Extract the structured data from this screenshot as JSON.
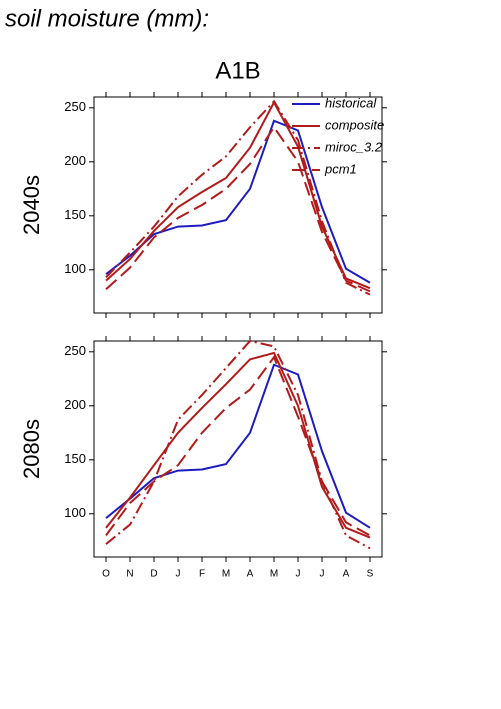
{
  "heading": "soil moisture (mm):",
  "chart_data": [
    {
      "type": "line",
      "title": "A1B",
      "ylabel": "2040s",
      "legend": "upper right",
      "ylim": [
        60,
        260
      ],
      "yticks": [
        100,
        150,
        200,
        250
      ],
      "series": [
        {
          "name": "historical",
          "color": "#1c1cc0",
          "dash": "solid",
          "values": [
            96,
            113,
            133,
            140,
            141,
            146,
            175,
            238,
            229,
            158,
            101,
            88
          ]
        },
        {
          "name": "composite",
          "color": "#b31b1b",
          "dash": "solid",
          "values": [
            90,
            110,
            136,
            158,
            172,
            185,
            213,
            255,
            214,
            140,
            92,
            83
          ]
        },
        {
          "name": "miroc_3.2",
          "color": "#b31b1b",
          "dash": "dashdot",
          "values": [
            93,
            116,
            140,
            168,
            188,
            205,
            232,
            256,
            220,
            145,
            88,
            77
          ]
        },
        {
          "name": "pcm1",
          "color": "#b31b1b",
          "dash": "dashed",
          "values": [
            82,
            102,
            130,
            148,
            160,
            175,
            198,
            232,
            200,
            135,
            90,
            80
          ]
        }
      ]
    },
    {
      "type": "line",
      "ylabel": "2080s",
      "categories": [
        "O",
        "N",
        "D",
        "J",
        "F",
        "M",
        "A",
        "M",
        "J",
        "J",
        "A",
        "S"
      ],
      "ylim": [
        60,
        260
      ],
      "yticks": [
        100,
        150,
        200,
        250
      ],
      "series": [
        {
          "color": "#1c1cc0",
          "dash": "solid",
          "values": [
            96,
            114,
            133,
            140,
            141,
            146,
            175,
            238,
            229,
            158,
            101,
            87
          ]
        },
        {
          "color": "#b31b1b",
          "dash": "solid",
          "values": [
            87,
            115,
            145,
            175,
            198,
            220,
            243,
            249,
            200,
            125,
            87,
            78
          ]
        },
        {
          "color": "#b31b1b",
          "dash": "dashdot",
          "values": [
            72,
            90,
            130,
            187,
            210,
            235,
            260,
            255,
            210,
            130,
            80,
            68
          ]
        },
        {
          "color": "#b31b1b",
          "dash": "dashed",
          "values": [
            80,
            110,
            130,
            145,
            175,
            198,
            215,
            245,
            190,
            130,
            92,
            80
          ]
        }
      ]
    }
  ]
}
